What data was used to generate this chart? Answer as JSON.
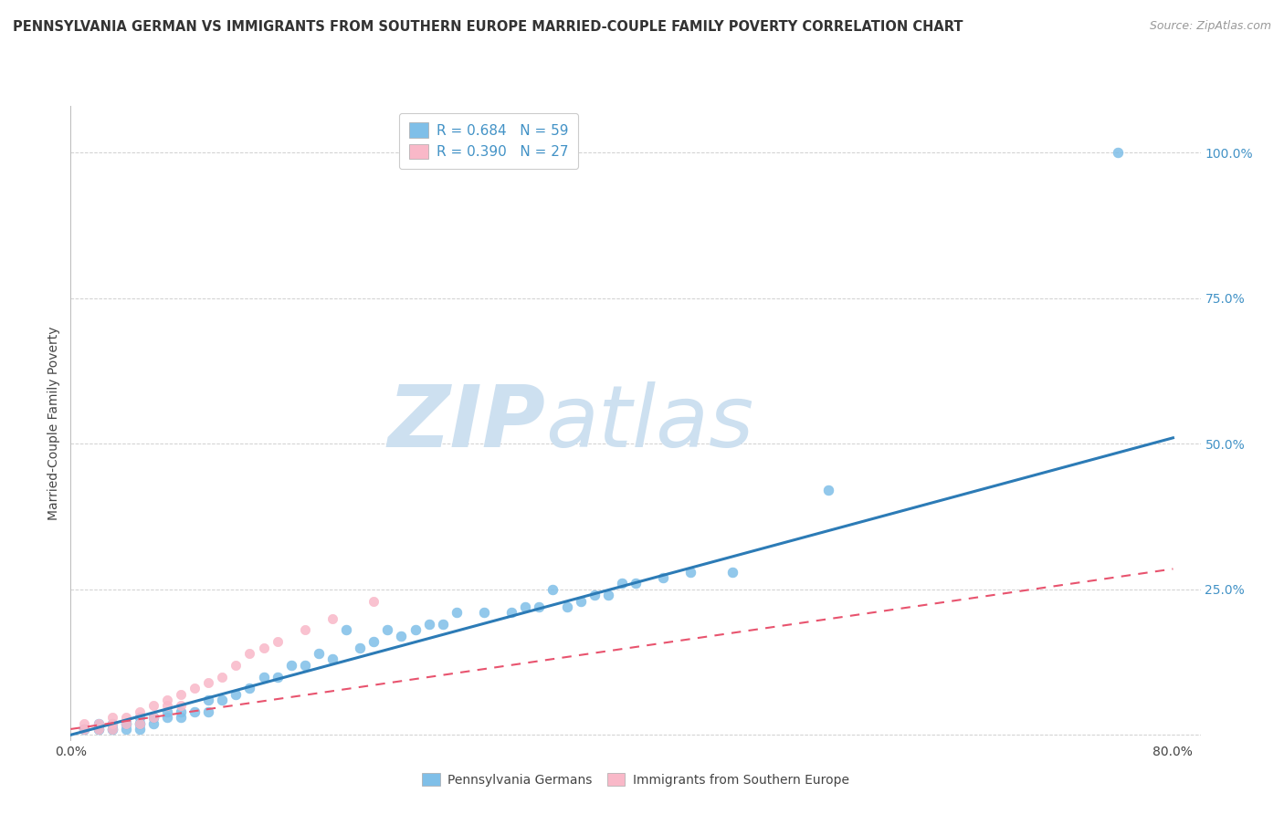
{
  "title": "PENNSYLVANIA GERMAN VS IMMIGRANTS FROM SOUTHERN EUROPE MARRIED-COUPLE FAMILY POVERTY CORRELATION CHART",
  "source": "Source: ZipAtlas.com",
  "ylabel": "Married-Couple Family Poverty",
  "xlim": [
    0.0,
    0.82
  ],
  "ylim": [
    -0.01,
    1.08
  ],
  "ytick_values": [
    0.0,
    0.25,
    0.5,
    0.75,
    1.0
  ],
  "ytick_labels": [
    "",
    "25.0%",
    "50.0%",
    "75.0%",
    "100.0%"
  ],
  "legend1_label": "R = 0.684   N = 59",
  "legend2_label": "R = 0.390   N = 27",
  "legend_bottom_label1": "Pennsylvania Germans",
  "legend_bottom_label2": "Immigrants from Southern Europe",
  "blue_color": "#7fbfe8",
  "pink_color": "#f9b8c8",
  "blue_line_color": "#2c7bb6",
  "pink_line_color": "#e8536e",
  "legend_text_color": "#4292c6",
  "watermark_zip_color": "#cde0f0",
  "watermark_atlas_color": "#cde0f0",
  "background_color": "#ffffff",
  "grid_color": "#d0d0d0",
  "title_fontsize": 10.5,
  "axis_label_fontsize": 10,
  "tick_fontsize": 10,
  "blue_line_start_x": 0.0,
  "blue_line_start_y": 0.0,
  "blue_line_end_x": 0.8,
  "blue_line_end_y": 0.51,
  "pink_line_start_x": 0.0,
  "pink_line_start_y": 0.01,
  "pink_line_end_x": 0.8,
  "pink_line_end_y": 0.285,
  "blue_scatter_x": [
    0.01,
    0.01,
    0.02,
    0.02,
    0.02,
    0.03,
    0.03,
    0.03,
    0.04,
    0.04,
    0.04,
    0.05,
    0.05,
    0.05,
    0.05,
    0.06,
    0.06,
    0.06,
    0.07,
    0.07,
    0.08,
    0.08,
    0.09,
    0.1,
    0.1,
    0.11,
    0.12,
    0.13,
    0.14,
    0.15,
    0.16,
    0.17,
    0.18,
    0.19,
    0.2,
    0.21,
    0.22,
    0.23,
    0.24,
    0.25,
    0.26,
    0.27,
    0.28,
    0.3,
    0.32,
    0.33,
    0.34,
    0.35,
    0.36,
    0.37,
    0.38,
    0.39,
    0.4,
    0.41,
    0.43,
    0.45,
    0.48,
    0.55,
    0.76
  ],
  "blue_scatter_y": [
    0.01,
    0.01,
    0.01,
    0.01,
    0.02,
    0.01,
    0.01,
    0.02,
    0.01,
    0.02,
    0.02,
    0.01,
    0.02,
    0.02,
    0.03,
    0.02,
    0.03,
    0.03,
    0.03,
    0.04,
    0.03,
    0.04,
    0.04,
    0.04,
    0.06,
    0.06,
    0.07,
    0.08,
    0.1,
    0.1,
    0.12,
    0.12,
    0.14,
    0.13,
    0.18,
    0.15,
    0.16,
    0.18,
    0.17,
    0.18,
    0.19,
    0.19,
    0.21,
    0.21,
    0.21,
    0.22,
    0.22,
    0.25,
    0.22,
    0.23,
    0.24,
    0.24,
    0.26,
    0.26,
    0.27,
    0.28,
    0.28,
    0.42,
    1.0
  ],
  "pink_scatter_x": [
    0.01,
    0.01,
    0.02,
    0.02,
    0.03,
    0.03,
    0.03,
    0.04,
    0.04,
    0.05,
    0.05,
    0.06,
    0.06,
    0.07,
    0.07,
    0.08,
    0.08,
    0.09,
    0.1,
    0.11,
    0.12,
    0.13,
    0.14,
    0.15,
    0.17,
    0.19,
    0.22
  ],
  "pink_scatter_y": [
    0.01,
    0.02,
    0.01,
    0.02,
    0.01,
    0.02,
    0.03,
    0.02,
    0.03,
    0.02,
    0.04,
    0.03,
    0.05,
    0.05,
    0.06,
    0.05,
    0.07,
    0.08,
    0.09,
    0.1,
    0.12,
    0.14,
    0.15,
    0.16,
    0.18,
    0.2,
    0.23
  ]
}
